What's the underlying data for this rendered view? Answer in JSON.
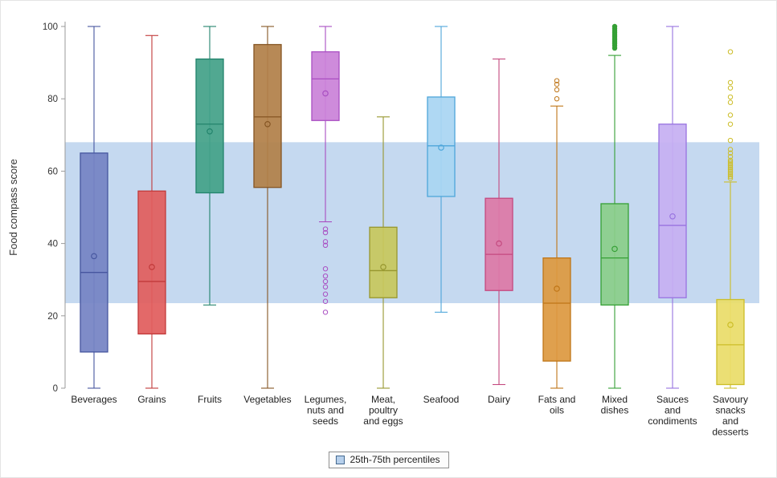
{
  "figure": {
    "legend": {
      "label": "25th-75th percentiles",
      "swatch_fill": "#b7d0ec",
      "swatch_stroke": "#44688f"
    }
  },
  "chart_data": {
    "type": "boxplot",
    "title": "",
    "xlabel": "",
    "ylabel": "Food compass score",
    "ylim": [
      0,
      100
    ],
    "yticks": [
      0,
      20,
      40,
      60,
      80,
      100
    ],
    "grid": false,
    "legend_position": "bottom-center",
    "band": {
      "from": 23.5,
      "to": 68,
      "color": "#b7d0ec",
      "opacity": 0.8,
      "label": "25th-75th percentiles"
    },
    "boxes": [
      {
        "category": "Beverages",
        "label_lines": [
          "Beverages"
        ],
        "whisker_low": 0,
        "q1": 10,
        "median": 32,
        "mean": 36.5,
        "q3": 65,
        "whisker_high": 100,
        "outliers": [],
        "outliers_filled": false,
        "fill": "#7583c4",
        "stroke": "#46569f"
      },
      {
        "category": "Grains",
        "label_lines": [
          "Grains"
        ],
        "whisker_low": 0,
        "q1": 15,
        "median": 29.5,
        "mean": 33.5,
        "q3": 54.5,
        "whisker_high": 97.5,
        "outliers": [],
        "outliers_filled": false,
        "fill": "#e15e5e",
        "stroke": "#c13a3a"
      },
      {
        "category": "Fruits",
        "label_lines": [
          "Fruits"
        ],
        "whisker_low": 23,
        "q1": 54,
        "median": 73,
        "mean": 71,
        "q3": 91,
        "whisker_high": 100,
        "outliers": [],
        "outliers_filled": false,
        "fill": "#44a189",
        "stroke": "#22836c"
      },
      {
        "category": "Vegetables",
        "label_lines": [
          "Vegetables"
        ],
        "whisker_low": 0,
        "q1": 55.5,
        "median": 75,
        "mean": 73,
        "q3": 95,
        "whisker_high": 100,
        "outliers": [],
        "outliers_filled": false,
        "fill": "#b28049",
        "stroke": "#855523"
      },
      {
        "category": "Legumes, nuts and seeds",
        "label_lines": [
          "Legumes,",
          "nuts and",
          "seeds"
        ],
        "whisker_low": 46,
        "q1": 74,
        "median": 85.5,
        "mean": 81.5,
        "q3": 93,
        "whisker_high": 100,
        "outliers": [
          44,
          43,
          40.5,
          39.5,
          33,
          31,
          29.5,
          28,
          26,
          24,
          21
        ],
        "outliers_filled": false,
        "fill": "#ca82d8",
        "stroke": "#a94fc2"
      },
      {
        "category": "Meat, poultry and eggs",
        "label_lines": [
          "Meat,",
          "poultry",
          "and eggs"
        ],
        "whisker_low": 0,
        "q1": 25,
        "median": 32.5,
        "mean": 33.5,
        "q3": 44.5,
        "whisker_high": 75,
        "outliers": [],
        "outliers_filled": false,
        "fill": "#c7c75e",
        "stroke": "#97972f"
      },
      {
        "category": "Seafood",
        "label_lines": [
          "Seafood"
        ],
        "whisker_low": 21,
        "q1": 53,
        "median": 67,
        "mean": 66.5,
        "q3": 80.5,
        "whisker_high": 100,
        "outliers": [],
        "outliers_filled": false,
        "fill": "#a9d5f2",
        "stroke": "#4ea6da"
      },
      {
        "category": "Dairy",
        "label_lines": [
          "Dairy"
        ],
        "whisker_low": 1,
        "q1": 27,
        "median": 37,
        "mean": 40,
        "q3": 52.5,
        "whisker_high": 91,
        "outliers": [],
        "outliers_filled": false,
        "fill": "#dd79a7",
        "stroke": "#c4497f"
      },
      {
        "category": "Fats and oils",
        "label_lines": [
          "Fats and",
          "oils"
        ],
        "whisker_low": 0,
        "q1": 7.5,
        "median": 23.5,
        "mean": 27.5,
        "q3": 36,
        "whisker_high": 78,
        "outliers": [
          85,
          84,
          82.5,
          80
        ],
        "outliers_filled": false,
        "fill": "#dd9941",
        "stroke": "#bf7517"
      },
      {
        "category": "Mixed dishes",
        "label_lines": [
          "Mixed",
          "dishes"
        ],
        "whisker_low": 0,
        "q1": 23,
        "median": 36,
        "mean": 38.5,
        "q3": 51,
        "whisker_high": 92,
        "outliers": [
          94,
          94.7,
          95.3,
          95.8,
          96.3,
          96.8,
          97.3,
          97.8,
          98.3,
          98.8,
          99.4,
          100
        ],
        "outliers_filled": true,
        "fill": "#8bcd8b",
        "stroke": "#35a035"
      },
      {
        "category": "Sauces and condiments",
        "label_lines": [
          "Sauces",
          "and",
          "condiments"
        ],
        "whisker_low": 0,
        "q1": 25,
        "median": 45,
        "mean": 47.5,
        "q3": 73,
        "whisker_high": 100,
        "outliers": [],
        "outliers_filled": false,
        "fill": "#c6aff2",
        "stroke": "#9873e0"
      },
      {
        "category": "Savoury snacks and desserts",
        "label_lines": [
          "Savoury",
          "snacks",
          "and",
          "desserts"
        ],
        "whisker_low": 0,
        "q1": 1,
        "median": 12,
        "mean": 17.5,
        "q3": 24.5,
        "whisker_high": 57,
        "outliers": [
          93,
          84.5,
          83,
          80.5,
          79,
          75.5,
          73,
          68.5,
          66,
          65,
          64,
          63,
          62.5,
          62,
          61.5,
          61,
          60.5,
          60,
          59.5,
          59,
          58.5,
          58
        ],
        "outliers_filled": false,
        "fill": "#e9dd69",
        "stroke": "#ccbd27"
      }
    ]
  }
}
